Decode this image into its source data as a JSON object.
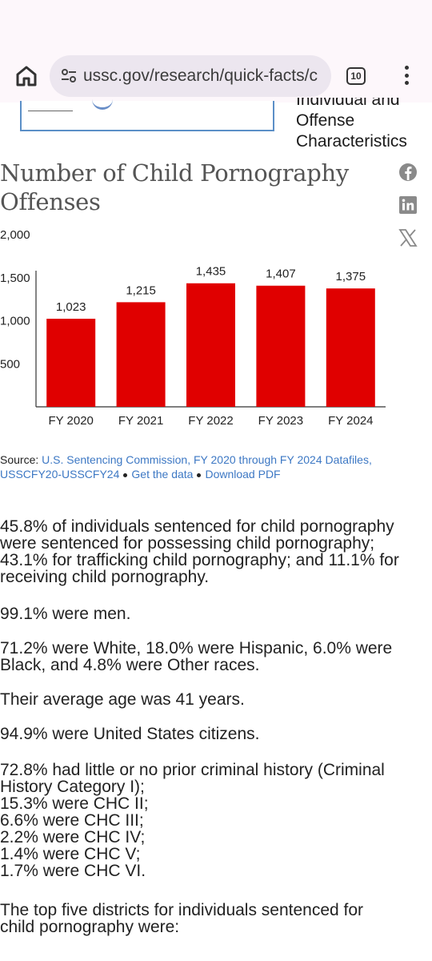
{
  "browser": {
    "url": "ussc.gov/research/quick-facts/c",
    "tab_count": "10"
  },
  "side_heading": {
    "line0": "Individual and",
    "line1": "Offense",
    "line2": "Characteristics"
  },
  "chart_title": {
    "line1": "Number of Child Pornography",
    "line2": "Offenses"
  },
  "share_icons": [
    "facebook-icon",
    "linkedin-icon",
    "x-icon"
  ],
  "chart_data": {
    "type": "bar",
    "title": "Number of Child Pornography Offenses",
    "categories": [
      "FY 2020",
      "FY 2021",
      "FY 2022",
      "FY 2023",
      "FY 2024"
    ],
    "values": [
      1023,
      1215,
      1435,
      1407,
      1375
    ],
    "value_labels": [
      "1,023",
      "1,215",
      "1,435",
      "1,407",
      "1,375"
    ],
    "y_ticks": [
      500,
      1000,
      1500,
      2000
    ],
    "y_tick_labels": [
      "500",
      "1,000",
      "1,500",
      "2,000"
    ],
    "ylim": [
      0,
      2000
    ],
    "bar_color": "#e00000",
    "grid": false
  },
  "source": {
    "label": "Source:",
    "link1": "U.S. Sentencing Commission, FY 2020 through FY 2024 Datafiles,",
    "link1b": "USSCFY20-USSCFY24",
    "link2": "Get the data",
    "link3": "Download PDF"
  },
  "paragraphs": {
    "p1": [
      "45.8% of individuals sentenced for child pornography",
      "were sentenced for possessing child pornography;",
      "43.1% for trafficking child pornography; and 11.1% for",
      "receiving child pornography."
    ],
    "p2": [
      "99.1% were men."
    ],
    "p3": [
      "71.2% were White, 18.0% were Hispanic, 6.0% were",
      "Black, and 4.8% were Other races."
    ],
    "p4": [
      "Their average age was 41 years."
    ],
    "p5": [
      "94.9% were United States citizens."
    ],
    "p6": [
      "72.8% had little or no prior criminal history (Criminal",
      "History Category I);",
      "15.3% were CHC II;",
      "6.6% were CHC III;",
      "2.2% were CHC IV;",
      "1.4% were CHC V;",
      "1.7% were CHC VI."
    ],
    "p7": [
      "The top five districts for individuals sentenced for",
      "child pornography were:"
    ]
  }
}
